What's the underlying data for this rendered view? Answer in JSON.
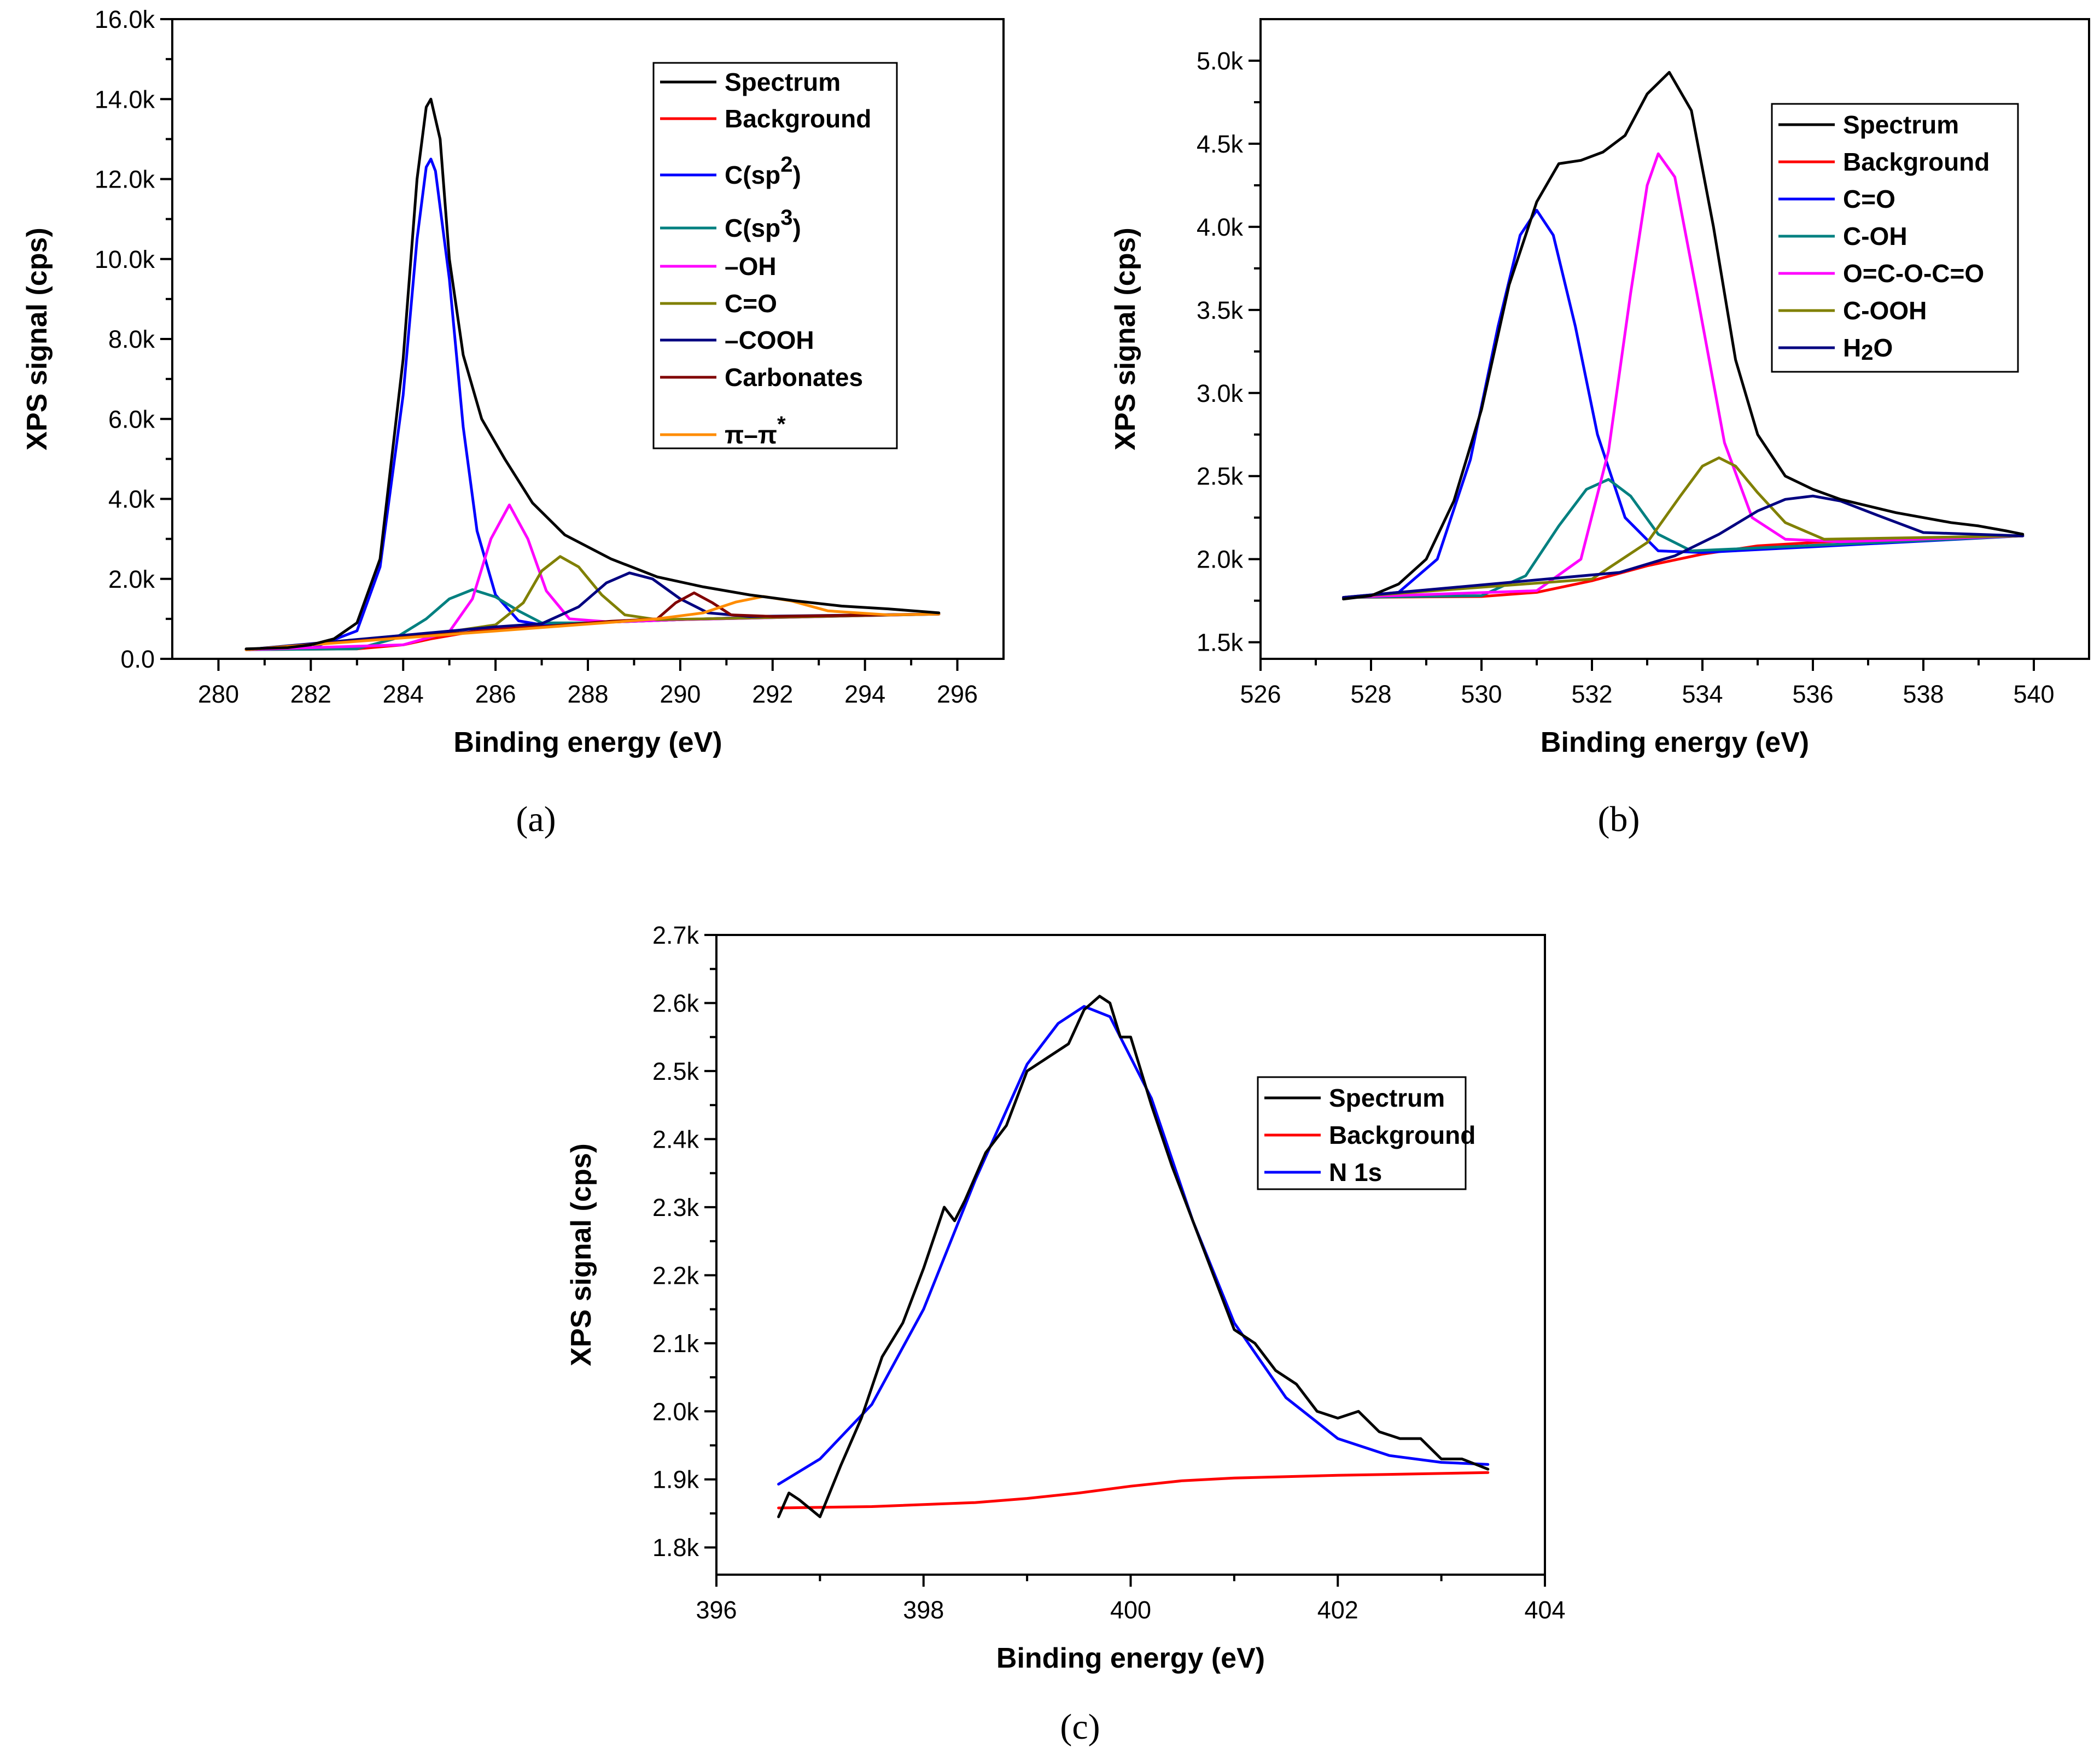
{
  "chart_data": [
    {
      "type": "line",
      "panel_label": "(a)",
      "xlabel": "Binding energy (eV)",
      "ylabel": "XPS signal (cps)",
      "xlim": [
        279,
        297
      ],
      "ylim": [
        0,
        16000
      ],
      "xticks": [
        280,
        282,
        284,
        286,
        288,
        290,
        292,
        294,
        296
      ],
      "yticks": [
        0,
        2000,
        4000,
        6000,
        8000,
        10000,
        12000,
        14000,
        16000
      ],
      "ytick_labels": [
        "0.0",
        "2.0k",
        "4.0k",
        "6.0k",
        "8.0k",
        "10.0k",
        "12.0k",
        "14.0k",
        "16.0k"
      ],
      "legend_position": "top-right",
      "series": [
        {
          "name": "Spectrum",
          "color": "#000000",
          "x": [
            280.6,
            281.5,
            282.0,
            282.5,
            283.0,
            283.5,
            284.0,
            284.3,
            284.5,
            284.6,
            284.8,
            285.0,
            285.3,
            285.7,
            286.2,
            286.8,
            287.5,
            288.5,
            289.5,
            290.5,
            291.5,
            292.5,
            293.5,
            294.5,
            295.6
          ],
          "y": [
            250,
            280,
            350,
            500,
            900,
            2500,
            7500,
            12000,
            13800,
            14000,
            13000,
            10000,
            7600,
            6000,
            5000,
            3900,
            3100,
            2500,
            2050,
            1800,
            1600,
            1450,
            1320,
            1250,
            1150
          ]
        },
        {
          "name": "Background",
          "color": "#ff0000",
          "x": [
            280.6,
            283.0,
            284.0,
            284.6,
            285.5,
            286.5,
            288.0,
            290.0,
            292.0,
            295.6
          ],
          "y": [
            230,
            250,
            350,
            500,
            680,
            800,
            900,
            980,
            1050,
            1120
          ]
        },
        {
          "name": "C(sp2)",
          "label": "C(sp",
          "sup": "2",
          "label_end": ")",
          "color": "#0000ff",
          "x": [
            280.6,
            282.0,
            283.0,
            283.5,
            284.0,
            284.3,
            284.5,
            284.6,
            284.7,
            285.0,
            285.3,
            285.6,
            286.0,
            286.5,
            287.0,
            288.0,
            290.0,
            292.0,
            295.6
          ],
          "y": [
            230,
            260,
            700,
            2300,
            6600,
            10500,
            12300,
            12500,
            12200,
            9500,
            5800,
            3200,
            1600,
            950,
            850,
            900,
            980,
            1050,
            1120
          ]
        },
        {
          "name": "C(sp3)",
          "label": "C(sp",
          "sup": "3",
          "label_end": ")",
          "color": "#008080",
          "x": [
            280.6,
            283.0,
            283.8,
            284.5,
            285.0,
            285.5,
            286.0,
            286.5,
            287.0,
            288.0,
            290.0,
            295.6
          ],
          "y": [
            230,
            250,
            500,
            1000,
            1500,
            1730,
            1550,
            1200,
            900,
            900,
            980,
            1120
          ]
        },
        {
          "name": "–OH",
          "color": "#ff00ff",
          "x": [
            280.6,
            284.0,
            285.0,
            285.5,
            285.9,
            286.3,
            286.7,
            287.1,
            287.6,
            288.5,
            290.0,
            295.6
          ],
          "y": [
            230,
            350,
            680,
            1500,
            3000,
            3850,
            3000,
            1700,
            1000,
            920,
            980,
            1120
          ]
        },
        {
          "name": "C=O",
          "color": "#808000",
          "x": [
            280.6,
            285.0,
            286.0,
            286.6,
            287.0,
            287.4,
            287.8,
            288.3,
            288.8,
            289.5,
            290.5,
            295.6
          ],
          "y": [
            230,
            680,
            850,
            1400,
            2200,
            2560,
            2300,
            1600,
            1100,
            980,
            1000,
            1120
          ]
        },
        {
          "name": "–COOH",
          "color": "#000080",
          "x": [
            280.6,
            286.0,
            287.0,
            287.8,
            288.4,
            288.9,
            289.4,
            290.0,
            290.6,
            291.5,
            295.6
          ],
          "y": [
            230,
            800,
            880,
            1300,
            1900,
            2150,
            2000,
            1500,
            1150,
            1060,
            1120
          ]
        },
        {
          "name": "Carbonates",
          "color": "#800000",
          "x": [
            280.6,
            288.5,
            289.5,
            289.9,
            290.3,
            290.7,
            291.1,
            292.0,
            295.6
          ],
          "y": [
            230,
            940,
            1000,
            1400,
            1650,
            1400,
            1100,
            1060,
            1120
          ]
        },
        {
          "name": "π–π*",
          "label": "π–π",
          "sup": "*",
          "label_end": "",
          "color": "#ff8c00",
          "x": [
            280.6,
            289.5,
            290.5,
            291.2,
            291.8,
            292.4,
            293.2,
            294.5,
            295.6
          ],
          "y": [
            230,
            1000,
            1150,
            1420,
            1560,
            1450,
            1200,
            1100,
            1120
          ]
        }
      ]
    },
    {
      "type": "line",
      "panel_label": "(b)",
      "xlabel": "Binding energy (eV)",
      "ylabel": "XPS signal (cps)",
      "xlim": [
        526,
        541
      ],
      "ylim": [
        1400,
        5250
      ],
      "xticks": [
        526,
        528,
        530,
        532,
        534,
        536,
        538,
        540
      ],
      "yticks": [
        1500,
        2000,
        2500,
        3000,
        3500,
        4000,
        4500,
        5000
      ],
      "ytick_labels": [
        "1.5k",
        "2.0k",
        "2.5k",
        "3.0k",
        "3.5k",
        "4.0k",
        "4.5k",
        "5.0k"
      ],
      "legend_position": "top-right",
      "series": [
        {
          "name": "Spectrum",
          "color": "#000000",
          "x": [
            527.5,
            528.0,
            528.5,
            529.0,
            529.5,
            530.0,
            530.5,
            531.0,
            531.4,
            531.8,
            532.2,
            532.6,
            533.0,
            533.4,
            533.8,
            534.2,
            534.6,
            535.0,
            535.5,
            536.0,
            536.5,
            537.0,
            537.5,
            538.0,
            538.5,
            539.0,
            539.5,
            539.8
          ],
          "y": [
            1760,
            1780,
            1850,
            2000,
            2350,
            2900,
            3650,
            4150,
            4380,
            4400,
            4450,
            4550,
            4800,
            4930,
            4700,
            4000,
            3200,
            2750,
            2500,
            2420,
            2360,
            2320,
            2280,
            2250,
            2220,
            2200,
            2170,
            2150
          ]
        },
        {
          "name": "Background",
          "color": "#ff0000",
          "x": [
            527.5,
            530.0,
            531.0,
            532.0,
            533.0,
            534.0,
            535.0,
            536.0,
            537.0,
            538.0,
            539.8
          ],
          "y": [
            1770,
            1775,
            1800,
            1870,
            1960,
            2030,
            2080,
            2100,
            2115,
            2125,
            2140
          ]
        },
        {
          "name": "C=O",
          "color": "#0000ff",
          "x": [
            527.5,
            528.5,
            529.2,
            529.8,
            530.3,
            530.7,
            531.0,
            531.3,
            531.7,
            532.1,
            532.6,
            533.2,
            534.0,
            539.8
          ],
          "y": [
            1770,
            1800,
            2000,
            2600,
            3400,
            3950,
            4100,
            3950,
            3400,
            2750,
            2250,
            2050,
            2040,
            2140
          ]
        },
        {
          "name": "C-OH",
          "color": "#008080",
          "x": [
            527.5,
            530.0,
            530.8,
            531.4,
            531.9,
            532.3,
            532.7,
            533.2,
            533.8,
            534.5,
            539.8
          ],
          "y": [
            1770,
            1780,
            1900,
            2200,
            2420,
            2480,
            2380,
            2150,
            2050,
            2060,
            2140
          ]
        },
        {
          "name": "O=C-O-C=O",
          "color": "#ff00ff",
          "x": [
            527.5,
            531.0,
            531.8,
            532.3,
            532.7,
            533.0,
            533.2,
            533.5,
            533.9,
            534.4,
            534.9,
            535.5,
            536.5,
            539.8
          ],
          "y": [
            1770,
            1810,
            2000,
            2650,
            3600,
            4250,
            4440,
            4300,
            3600,
            2700,
            2250,
            2120,
            2105,
            2140
          ]
        },
        {
          "name": "C-OOH",
          "color": "#808000",
          "x": [
            527.5,
            532.0,
            533.0,
            533.6,
            534.0,
            534.3,
            534.6,
            535.0,
            535.5,
            536.2,
            539.8
          ],
          "y": [
            1770,
            1880,
            2100,
            2380,
            2560,
            2610,
            2560,
            2400,
            2220,
            2120,
            2140
          ]
        },
        {
          "name": "H2O",
          "label": "H",
          "sub": "2",
          "label_end": "O",
          "color": "#000080",
          "x": [
            527.5,
            532.5,
            533.5,
            534.3,
            535.0,
            535.5,
            536.0,
            536.5,
            537.2,
            538.0,
            539.8
          ],
          "y": [
            1770,
            1920,
            2020,
            2150,
            2290,
            2360,
            2380,
            2350,
            2260,
            2160,
            2140
          ]
        }
      ]
    },
    {
      "type": "line",
      "panel_label": "(c)",
      "xlabel": "Binding energy (eV)",
      "ylabel": "XPS signal (cps)",
      "xlim": [
        396,
        404
      ],
      "ylim": [
        1760,
        2700
      ],
      "xticks": [
        396,
        398,
        400,
        402,
        404
      ],
      "yticks": [
        1800,
        1900,
        2000,
        2100,
        2200,
        2300,
        2400,
        2500,
        2600,
        2700
      ],
      "ytick_labels": [
        "1.8k",
        "1.9k",
        "2.0k",
        "2.1k",
        "2.2k",
        "2.3k",
        "2.4k",
        "2.5k",
        "2.6k",
        "2.7k"
      ],
      "legend_position": "right",
      "series": [
        {
          "name": "Spectrum",
          "color": "#000000",
          "x": [
            396.6,
            396.7,
            396.8,
            397.0,
            397.2,
            397.4,
            397.6,
            397.8,
            398.0,
            398.2,
            398.3,
            398.4,
            398.6,
            398.8,
            399.0,
            399.2,
            399.4,
            399.55,
            399.7,
            399.8,
            399.9,
            400.0,
            400.2,
            400.4,
            400.6,
            400.8,
            401.0,
            401.2,
            401.4,
            401.6,
            401.8,
            402.0,
            402.2,
            402.4,
            402.6,
            402.8,
            403.0,
            403.2,
            403.45
          ],
          "y": [
            1845,
            1880,
            1870,
            1845,
            1920,
            1990,
            2080,
            2130,
            2210,
            2300,
            2280,
            2310,
            2380,
            2420,
            2500,
            2520,
            2540,
            2590,
            2610,
            2600,
            2550,
            2550,
            2450,
            2360,
            2280,
            2200,
            2120,
            2100,
            2060,
            2040,
            2000,
            1990,
            2000,
            1970,
            1960,
            1960,
            1930,
            1930,
            1915
          ]
        },
        {
          "name": "Background",
          "color": "#ff0000",
          "x": [
            396.6,
            397.5,
            398.5,
            399.0,
            399.5,
            400.0,
            400.5,
            401.0,
            402.0,
            403.45
          ],
          "y": [
            1858,
            1860,
            1866,
            1872,
            1880,
            1890,
            1898,
            1902,
            1906,
            1910
          ]
        },
        {
          "name": "N 1s",
          "color": "#0000ff",
          "x": [
            396.6,
            397.0,
            397.5,
            398.0,
            398.5,
            399.0,
            399.3,
            399.55,
            399.8,
            400.2,
            400.6,
            401.0,
            401.5,
            402.0,
            402.5,
            403.0,
            403.45
          ],
          "y": [
            1893,
            1930,
            2010,
            2150,
            2340,
            2510,
            2570,
            2595,
            2580,
            2460,
            2280,
            2130,
            2020,
            1960,
            1935,
            1925,
            1922
          ]
        }
      ]
    }
  ]
}
